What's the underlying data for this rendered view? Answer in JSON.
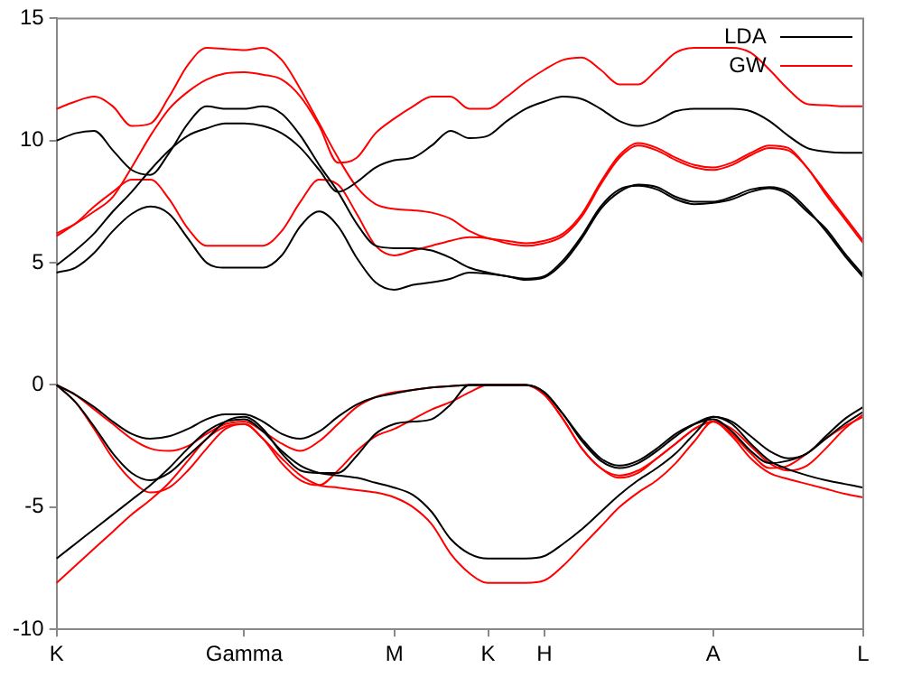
{
  "chart_data": {
    "type": "line",
    "ylim": [
      -10,
      15
    ],
    "categories": [
      "K",
      null,
      null,
      null,
      null,
      null,
      null,
      null,
      null,
      null,
      "Gamma",
      null,
      null,
      null,
      null,
      null,
      null,
      null,
      "M",
      null,
      null,
      null,
      null,
      "K",
      null,
      null,
      "H",
      null,
      null,
      null,
      null,
      null,
      null,
      null,
      null,
      "A",
      null,
      null,
      null,
      null,
      null,
      null,
      null,
      "L"
    ],
    "yticks": [
      -10,
      -5,
      0,
      5,
      10,
      15
    ],
    "grid": false,
    "legend": "top right",
    "marker": "none",
    "line_style": "solid",
    "series": [
      {
        "name": "LDA",
        "color": "#000000",
        "values": [
          4.6,
          4.8,
          5.4,
          6.3,
          7.0,
          7.3,
          7.0,
          6.0,
          5.0,
          4.8,
          4.8,
          4.8,
          5.3,
          6.5,
          7.1,
          6.5,
          5.2,
          4.2,
          3.9,
          4.1,
          4.2,
          4.35,
          4.6,
          4.55,
          4.45,
          4.3,
          4.4,
          5.0,
          6.0,
          7.2,
          7.9,
          8.2,
          8.1,
          7.7,
          7.5,
          7.5,
          7.7,
          8.0,
          8.1,
          7.9,
          7.2,
          6.3,
          5.3,
          4.4
        ]
      },
      {
        "color": "#000000",
        "values": [
          4.9,
          5.5,
          6.2,
          7.1,
          7.9,
          8.8,
          9.6,
          10.2,
          10.5,
          10.7,
          10.7,
          10.6,
          10.3,
          9.7,
          8.8,
          7.9,
          8.3,
          8.9,
          9.2,
          9.3,
          9.8,
          10.4,
          10.1,
          10.2,
          10.8,
          11.3,
          11.6,
          11.8,
          11.7,
          11.3,
          10.8,
          10.6,
          10.8,
          11.2,
          11.3,
          11.3,
          11.3,
          11.2,
          10.8,
          10.2,
          9.7,
          9.55,
          9.5,
          9.5
        ]
      },
      {
        "color": "#000000",
        "values": [
          10.0,
          10.3,
          10.4,
          9.6,
          8.8,
          8.6,
          9.5,
          10.7,
          11.4,
          11.3,
          11.3,
          11.4,
          11.1,
          10.2,
          9.0,
          7.9,
          6.6,
          5.7,
          5.6,
          5.6,
          5.5,
          5.2,
          4.8,
          4.6,
          4.45,
          4.35,
          4.45,
          5.1,
          6.1,
          7.3,
          8.0,
          8.15,
          8.0,
          7.6,
          7.4,
          7.45,
          7.6,
          7.9,
          8.05,
          7.8,
          7.1,
          6.4,
          5.4,
          4.5
        ]
      },
      {
        "name": "GW",
        "color": "#ff0000",
        "values": [
          6.1,
          6.6,
          7.3,
          7.9,
          8.4,
          8.4,
          7.6,
          6.4,
          5.7,
          5.7,
          5.7,
          5.7,
          6.3,
          7.5,
          8.4,
          8.2,
          7.0,
          5.7,
          5.3,
          5.5,
          5.7,
          5.9,
          6.05,
          6.0,
          5.8,
          5.7,
          5.8,
          6.1,
          6.9,
          8.2,
          9.3,
          9.8,
          9.6,
          9.2,
          8.9,
          8.8,
          9.0,
          9.4,
          9.7,
          9.6,
          8.9,
          7.8,
          6.8,
          5.8
        ]
      },
      {
        "color": "#ff0000",
        "values": [
          6.2,
          6.6,
          7.1,
          7.7,
          8.9,
          10.2,
          11.3,
          12.0,
          12.5,
          12.75,
          12.8,
          12.7,
          12.5,
          11.8,
          10.6,
          9.1,
          9.3,
          10.3,
          10.9,
          11.4,
          11.8,
          11.8,
          11.3,
          11.3,
          11.8,
          12.4,
          12.9,
          13.3,
          13.4,
          12.9,
          12.3,
          12.3,
          12.9,
          13.6,
          13.8,
          13.8,
          13.8,
          13.6,
          12.9,
          12.1,
          11.5,
          11.45,
          11.4,
          11.4
        ]
      },
      {
        "color": "#ff0000",
        "values": [
          11.3,
          11.6,
          11.8,
          11.4,
          10.6,
          10.7,
          11.8,
          13.1,
          13.8,
          13.75,
          13.7,
          13.8,
          13.3,
          12.1,
          10.7,
          9.3,
          8.1,
          7.4,
          7.2,
          7.15,
          7.05,
          6.8,
          6.3,
          6.0,
          5.9,
          5.8,
          5.9,
          6.2,
          7.0,
          8.3,
          9.4,
          9.9,
          9.7,
          9.3,
          9.0,
          8.9,
          9.1,
          9.5,
          9.8,
          9.7,
          8.9,
          7.9,
          6.9,
          5.9
        ]
      },
      {
        "color": "#000000",
        "values": [
          0,
          -0.4,
          -0.9,
          -1.5,
          -2.0,
          -2.2,
          -2.1,
          -1.8,
          -1.4,
          -1.2,
          -1.2,
          -1.5,
          -2.0,
          -2.2,
          -1.9,
          -1.3,
          -0.8,
          -0.5,
          -0.35,
          -0.2,
          -0.1,
          -0.05,
          0,
          0,
          0,
          0,
          -0.3,
          -1.2,
          -2.3,
          -3.1,
          -3.4,
          -3.2,
          -2.7,
          -2.1,
          -1.6,
          -1.3,
          -1.5,
          -2.1,
          -2.7,
          -3.0,
          -2.8,
          -2.1,
          -1.4,
          -0.9
        ]
      },
      {
        "color": "#000000",
        "values": [
          0,
          -0.7,
          -1.7,
          -2.8,
          -3.6,
          -3.9,
          -3.6,
          -2.9,
          -2.2,
          -1.5,
          -1.3,
          -1.8,
          -2.8,
          -3.5,
          -3.6,
          -3.6,
          -2.9,
          -2.0,
          -1.6,
          -1.5,
          -1.4,
          -0.8,
          0,
          0,
          0,
          0,
          -0.3,
          -1.2,
          -2.2,
          -3.0,
          -3.3,
          -3.1,
          -2.6,
          -2.0,
          -1.6,
          -1.4,
          -1.9,
          -2.7,
          -3.2,
          -3.1,
          -2.8,
          -2.2,
          -1.6,
          -1.1
        ]
      },
      {
        "color": "#000000",
        "values": [
          -7.1,
          -6.5,
          -5.9,
          -5.3,
          -4.7,
          -4.1,
          -3.4,
          -2.6,
          -1.9,
          -1.5,
          -1.4,
          -1.9,
          -2.7,
          -3.3,
          -3.6,
          -3.7,
          -3.8,
          -4.0,
          -4.2,
          -4.5,
          -5.2,
          -6.3,
          -6.9,
          -7.1,
          -7.1,
          -7.1,
          -7.0,
          -6.5,
          -5.9,
          -5.2,
          -4.5,
          -3.9,
          -3.4,
          -2.8,
          -2.0,
          -1.3,
          -1.6,
          -2.4,
          -3.1,
          -3.45,
          -3.7,
          -3.9,
          -4.05,
          -4.2
        ]
      },
      {
        "color": "#ff0000",
        "values": [
          0,
          -0.4,
          -1.0,
          -1.6,
          -2.2,
          -2.6,
          -2.7,
          -2.5,
          -2.0,
          -1.6,
          -1.5,
          -1.9,
          -2.4,
          -2.7,
          -2.3,
          -1.6,
          -0.9,
          -0.5,
          -0.3,
          -0.2,
          -0.1,
          -0.05,
          0,
          0,
          0,
          0,
          -0.4,
          -1.4,
          -2.6,
          -3.4,
          -3.7,
          -3.5,
          -3.0,
          -2.4,
          -1.8,
          -1.5,
          -1.8,
          -2.5,
          -3.2,
          -3.5,
          -3.3,
          -2.6,
          -1.8,
          -1.2
        ]
      },
      {
        "color": "#ff0000",
        "values": [
          0,
          -0.7,
          -1.8,
          -3.0,
          -3.9,
          -4.4,
          -4.2,
          -3.5,
          -2.6,
          -1.8,
          -1.6,
          -2.2,
          -3.2,
          -3.9,
          -4.1,
          -3.5,
          -2.7,
          -2.1,
          -1.8,
          -1.4,
          -1.0,
          -0.7,
          -0.3,
          0,
          0,
          0,
          -0.4,
          -1.4,
          -2.6,
          -3.4,
          -3.8,
          -3.6,
          -3.0,
          -2.4,
          -1.8,
          -1.5,
          -2.1,
          -3.0,
          -3.6,
          -3.85,
          -4.05,
          -4.25,
          -4.45,
          -4.6
        ]
      },
      {
        "color": "#ff0000",
        "values": [
          -8.1,
          -7.4,
          -6.7,
          -6.0,
          -5.3,
          -4.7,
          -4.0,
          -3.1,
          -2.2,
          -1.7,
          -1.6,
          -2.2,
          -3.0,
          -3.7,
          -4.1,
          -4.2,
          -4.3,
          -4.4,
          -4.6,
          -5.0,
          -5.7,
          -6.9,
          -7.7,
          -8.1,
          -8.1,
          -8.1,
          -8.0,
          -7.4,
          -6.6,
          -5.8,
          -5.0,
          -4.4,
          -3.9,
          -3.2,
          -2.3,
          -1.5,
          -2.0,
          -2.8,
          -3.4,
          -3.3,
          -2.8,
          -2.2,
          -1.7,
          -1.3
        ]
      }
    ]
  }
}
